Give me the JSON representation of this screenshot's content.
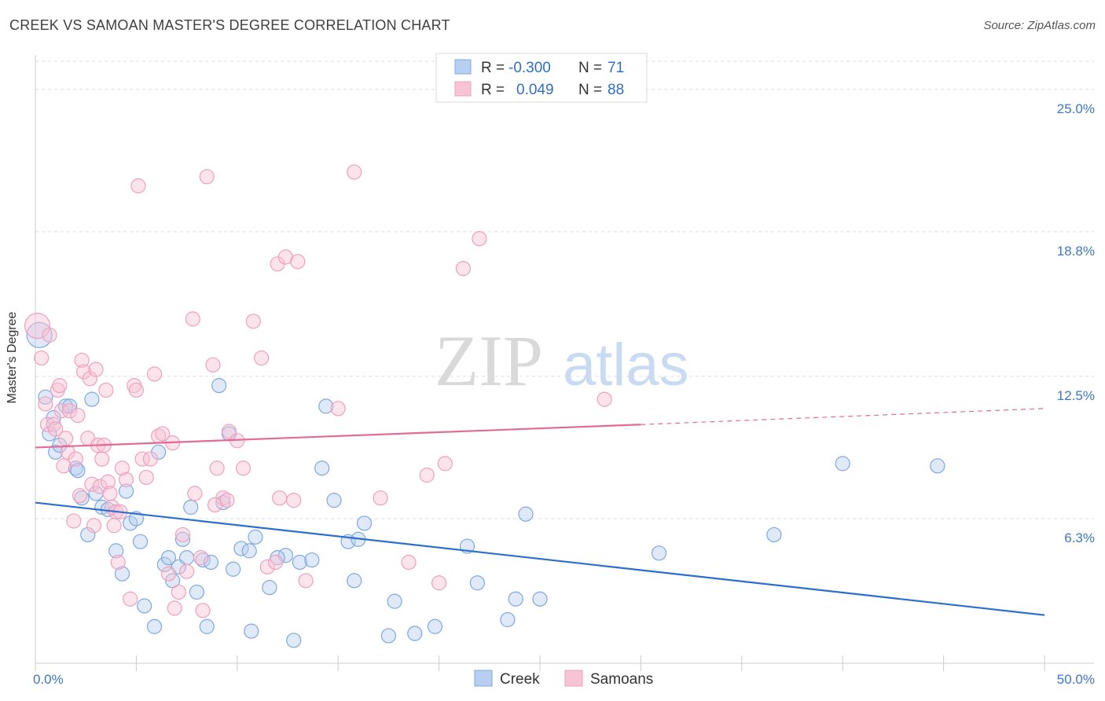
{
  "header": {
    "title": "CREEK VS SAMOAN MASTER'S DEGREE CORRELATION CHART",
    "source": "Source: ZipAtlas.com"
  },
  "watermark": {
    "part1": "ZIP",
    "part2": "atlas"
  },
  "chart_data": {
    "type": "scatter",
    "ylabel": "Master's Degree",
    "xlim": [
      0,
      50
    ],
    "ylim": [
      0,
      26.5
    ],
    "y_ticks": [
      {
        "value": 25.0,
        "label": "25.0%"
      },
      {
        "value": 18.8,
        "label": "18.8%"
      },
      {
        "value": 12.5,
        "label": "12.5%"
      },
      {
        "value": 6.3,
        "label": "6.3%"
      }
    ],
    "x_tick_labels": {
      "min": "0.0%",
      "max": "50.0%"
    },
    "grid": true,
    "legend_placement": "top-center",
    "legend": {
      "rows": [
        {
          "r_label": "R =",
          "r_value": "-0.300",
          "n_label": "N =",
          "n_value": "71"
        },
        {
          "r_label": "R =",
          "r_value": "0.049",
          "n_label": "N =",
          "n_value": "88"
        }
      ]
    },
    "series": [
      {
        "name": "Creek",
        "color": "#7fa8e0",
        "fill": "#b7cff0",
        "line_color": "#2a6fd0",
        "trend": {
          "x0": 0,
          "y0": 7.0,
          "x1": 50,
          "y1": 2.1
        },
        "points": [
          [
            0.2,
            14.3
          ],
          [
            0.5,
            11.6
          ],
          [
            0.7,
            10.0
          ],
          [
            0.9,
            10.7
          ],
          [
            1.0,
            9.2
          ],
          [
            1.2,
            9.5
          ],
          [
            1.5,
            11.2
          ],
          [
            1.7,
            11.2
          ],
          [
            2.0,
            8.5
          ],
          [
            2.1,
            8.4
          ],
          [
            2.3,
            7.2
          ],
          [
            2.6,
            5.6
          ],
          [
            2.8,
            11.5
          ],
          [
            3.0,
            7.4
          ],
          [
            3.3,
            6.8
          ],
          [
            3.6,
            6.7
          ],
          [
            4.0,
            4.9
          ],
          [
            4.3,
            3.9
          ],
          [
            4.5,
            7.5
          ],
          [
            4.7,
            6.1
          ],
          [
            5.0,
            6.3
          ],
          [
            5.2,
            5.3
          ],
          [
            5.4,
            2.5
          ],
          [
            5.9,
            1.6
          ],
          [
            6.1,
            9.2
          ],
          [
            6.4,
            4.3
          ],
          [
            6.6,
            4.6
          ],
          [
            6.8,
            3.6
          ],
          [
            7.1,
            4.2
          ],
          [
            7.3,
            5.4
          ],
          [
            7.5,
            4.6
          ],
          [
            7.7,
            6.8
          ],
          [
            8.0,
            3.1
          ],
          [
            8.3,
            4.5
          ],
          [
            8.5,
            1.6
          ],
          [
            8.7,
            4.4
          ],
          [
            9.1,
            12.1
          ],
          [
            9.3,
            7.0
          ],
          [
            9.6,
            10.0
          ],
          [
            9.8,
            4.1
          ],
          [
            10.2,
            5.0
          ],
          [
            10.6,
            4.9
          ],
          [
            10.7,
            1.4
          ],
          [
            10.9,
            5.5
          ],
          [
            11.6,
            3.3
          ],
          [
            12.4,
            4.7
          ],
          [
            12.8,
            1.0
          ],
          [
            13.1,
            4.4
          ],
          [
            13.7,
            4.5
          ],
          [
            14.2,
            8.5
          ],
          [
            14.4,
            11.2
          ],
          [
            14.8,
            7.1
          ],
          [
            15.5,
            5.3
          ],
          [
            15.8,
            3.6
          ],
          [
            16.0,
            5.4
          ],
          [
            16.3,
            6.1
          ],
          [
            17.5,
            1.2
          ],
          [
            17.8,
            2.7
          ],
          [
            18.8,
            1.3
          ],
          [
            19.8,
            1.6
          ],
          [
            21.4,
            5.1
          ],
          [
            21.9,
            3.5
          ],
          [
            23.4,
            1.9
          ],
          [
            23.8,
            2.8
          ],
          [
            24.3,
            6.5
          ],
          [
            25.0,
            2.8
          ],
          [
            30.9,
            4.8
          ],
          [
            36.6,
            5.6
          ],
          [
            40.0,
            8.7
          ],
          [
            44.7,
            8.6
          ],
          [
            12.0,
            4.6
          ]
        ]
      },
      {
        "name": "Samoans",
        "color": "#efa0bc",
        "fill": "#f7c4d5",
        "line_color": "#e36b93",
        "trend": {
          "x0": 0,
          "y0": 9.4,
          "x1": 30,
          "y1": 10.4,
          "dash_to": {
            "x": 50,
            "y": 11.1
          }
        },
        "points": [
          [
            0.1,
            14.7
          ],
          [
            0.3,
            13.3
          ],
          [
            0.5,
            11.3
          ],
          [
            0.6,
            10.4
          ],
          [
            0.7,
            14.3
          ],
          [
            0.9,
            10.4
          ],
          [
            1.0,
            10.2
          ],
          [
            1.1,
            11.9
          ],
          [
            1.2,
            12.1
          ],
          [
            1.3,
            11.0
          ],
          [
            1.4,
            8.6
          ],
          [
            1.5,
            9.8
          ],
          [
            1.6,
            9.2
          ],
          [
            1.7,
            11.0
          ],
          [
            1.9,
            6.2
          ],
          [
            2.0,
            8.9
          ],
          [
            2.1,
            10.8
          ],
          [
            2.2,
            7.3
          ],
          [
            2.3,
            13.2
          ],
          [
            2.4,
            12.7
          ],
          [
            2.6,
            9.8
          ],
          [
            2.7,
            12.4
          ],
          [
            2.8,
            7.8
          ],
          [
            2.9,
            6.0
          ],
          [
            3.0,
            12.8
          ],
          [
            3.1,
            9.5
          ],
          [
            3.2,
            7.7
          ],
          [
            3.3,
            8.9
          ],
          [
            3.4,
            9.5
          ],
          [
            3.5,
            11.9
          ],
          [
            3.6,
            7.9
          ],
          [
            3.7,
            7.4
          ],
          [
            3.8,
            6.8
          ],
          [
            3.9,
            6.0
          ],
          [
            4.0,
            6.6
          ],
          [
            4.1,
            4.4
          ],
          [
            4.2,
            6.6
          ],
          [
            4.3,
            8.5
          ],
          [
            4.5,
            8.0
          ],
          [
            4.7,
            2.8
          ],
          [
            4.9,
            12.1
          ],
          [
            5.0,
            11.9
          ],
          [
            5.1,
            20.8
          ],
          [
            5.3,
            8.9
          ],
          [
            5.5,
            8.1
          ],
          [
            5.7,
            8.9
          ],
          [
            5.9,
            12.6
          ],
          [
            6.1,
            9.9
          ],
          [
            6.3,
            10.0
          ],
          [
            6.6,
            3.9
          ],
          [
            6.9,
            2.4
          ],
          [
            7.1,
            3.1
          ],
          [
            7.3,
            5.6
          ],
          [
            7.5,
            4.0
          ],
          [
            7.8,
            15.0
          ],
          [
            7.9,
            7.4
          ],
          [
            8.2,
            4.6
          ],
          [
            8.3,
            2.3
          ],
          [
            8.5,
            21.2
          ],
          [
            8.8,
            13.0
          ],
          [
            9.0,
            8.5
          ],
          [
            9.3,
            7.2
          ],
          [
            9.6,
            10.1
          ],
          [
            10.0,
            9.7
          ],
          [
            10.3,
            8.5
          ],
          [
            10.8,
            14.9
          ],
          [
            11.2,
            13.3
          ],
          [
            11.5,
            4.2
          ],
          [
            11.9,
            4.4
          ],
          [
            12.0,
            17.4
          ],
          [
            12.1,
            7.2
          ],
          [
            12.4,
            17.7
          ],
          [
            12.8,
            7.1
          ],
          [
            13.0,
            17.5
          ],
          [
            13.4,
            3.6
          ],
          [
            15.0,
            11.1
          ],
          [
            15.8,
            21.4
          ],
          [
            17.1,
            7.2
          ],
          [
            18.5,
            4.4
          ],
          [
            19.4,
            8.2
          ],
          [
            20.0,
            3.5
          ],
          [
            20.3,
            8.7
          ],
          [
            21.2,
            17.2
          ],
          [
            22.0,
            18.5
          ],
          [
            28.2,
            11.5
          ],
          [
            8.9,
            6.9
          ],
          [
            9.5,
            7.1
          ],
          [
            6.8,
            9.6
          ]
        ]
      }
    ]
  },
  "bottom_legend": [
    {
      "label": "Creek"
    },
    {
      "label": "Samoans"
    }
  ]
}
